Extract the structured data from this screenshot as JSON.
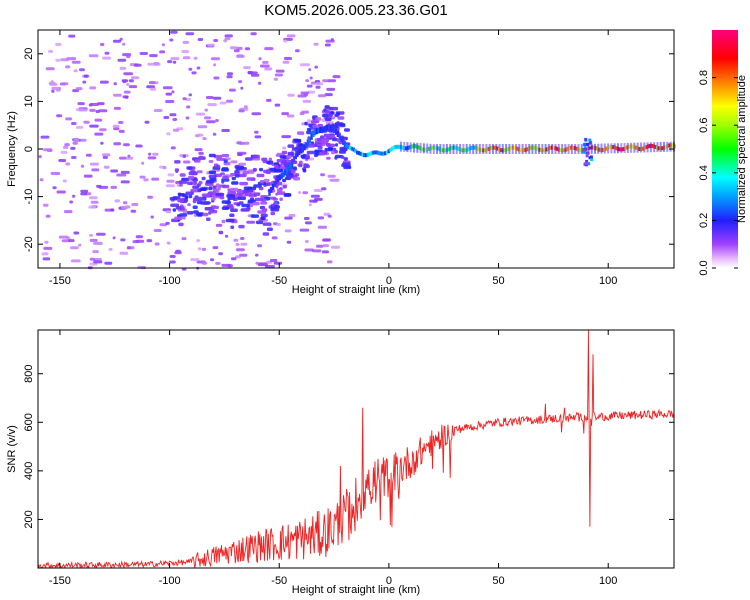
{
  "title": "KOM5.2026.005.23.36.G01",
  "chart_data": [
    {
      "type": "heatmap",
      "name": "spectrogram",
      "xlabel": "Height of straight line (km)",
      "ylabel": "Frequency (Hz)",
      "xlim": [
        -160,
        130
      ],
      "ylim": [
        -25,
        25
      ],
      "xticks": [
        -150,
        -100,
        -50,
        0,
        50,
        100
      ],
      "yticks": [
        -20,
        -10,
        0,
        10,
        20
      ],
      "colorbar": {
        "label": "Normalized spectral amplitude",
        "range": [
          0,
          1
        ],
        "ticks": [
          "0.0",
          "0.2",
          "0.4",
          "0.6",
          "0.8"
        ]
      },
      "ridge_track": [
        {
          "x": -55,
          "y": -9
        },
        {
          "x": -45,
          "y": -3
        },
        {
          "x": -35,
          "y": 3
        },
        {
          "x": -28,
          "y": 5
        },
        {
          "x": -20,
          "y": 1
        },
        {
          "x": -15,
          "y": -1
        },
        {
          "x": -5,
          "y": -1
        },
        {
          "x": 5,
          "y": 0.5
        },
        {
          "x": 20,
          "y": 0
        },
        {
          "x": 50,
          "y": 0
        },
        {
          "x": 90,
          "y": 0
        },
        {
          "x": 130,
          "y": 0.5
        }
      ],
      "peak_amplitude_region": {
        "x_from": 40,
        "x_to": 130,
        "freq_hz": 0
      }
    },
    {
      "type": "line",
      "name": "snr",
      "xlabel": "Height of straight line (km)",
      "ylabel": "SNR (v/v)",
      "xlim": [
        -160,
        130
      ],
      "ylim": [
        0,
        980
      ],
      "xticks": [
        -150,
        -100,
        -50,
        0,
        50,
        100
      ],
      "yticks": [
        200,
        400,
        600,
        800
      ],
      "series": [
        {
          "name": "SNR",
          "color": "#ee2222",
          "trend": [
            {
              "x": -160,
              "y": 10
            },
            {
              "x": -110,
              "y": 15
            },
            {
              "x": -90,
              "y": 25
            },
            {
              "x": -75,
              "y": 60
            },
            {
              "x": -60,
              "y": 90
            },
            {
              "x": -45,
              "y": 110
            },
            {
              "x": -30,
              "y": 140
            },
            {
              "x": -20,
              "y": 200
            },
            {
              "x": -10,
              "y": 340
            },
            {
              "x": 0,
              "y": 380
            },
            {
              "x": 10,
              "y": 440
            },
            {
              "x": 20,
              "y": 520
            },
            {
              "x": 30,
              "y": 570
            },
            {
              "x": 50,
              "y": 600
            },
            {
              "x": 75,
              "y": 615
            },
            {
              "x": 100,
              "y": 625
            },
            {
              "x": 130,
              "y": 635
            }
          ],
          "spikes": [
            {
              "x": -12,
              "y": 660
            },
            {
              "x": -22,
              "y": 420
            },
            {
              "x": 80,
              "y": 660
            },
            {
              "x": 91,
              "y": 980
            },
            {
              "x": 91.5,
              "y": 170
            },
            {
              "x": 93,
              "y": 880
            }
          ]
        }
      ]
    }
  ]
}
